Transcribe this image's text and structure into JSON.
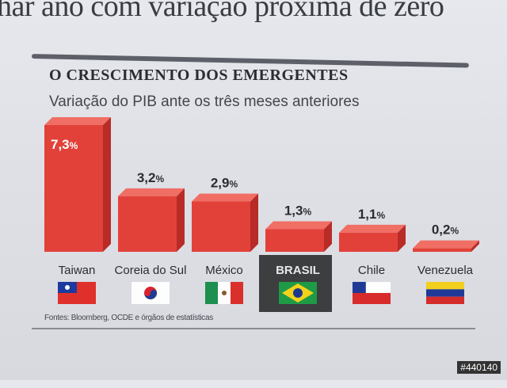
{
  "headline": "har ano com variação próxima de zero",
  "chart_data": {
    "type": "bar",
    "title": "O CRESCIMENTO DOS EMERGENTES",
    "subtitle": "Variação do PIB ante os três meses anteriores",
    "categories": [
      "Taiwan",
      "Coreia do Sul",
      "México",
      "BRASIL",
      "Chile",
      "Venezuela"
    ],
    "values": [
      7.3,
      3.2,
      2.9,
      1.3,
      1.1,
      0.2
    ],
    "value_labels": [
      "7,3",
      "3,2",
      "2,9",
      "1,3",
      "1,1",
      "0,2"
    ],
    "unit": "%",
    "highlight": "BRASIL",
    "ylim": [
      0,
      7.3
    ],
    "source": "Fontes: Bloomberg, OCDE e órgãos de estatísticas",
    "colors": {
      "bar": "#e2413a",
      "bar_top": "#f06e64",
      "bar_side": "#b82b27",
      "highlight_bg": "#3d3e40"
    }
  },
  "stamp": "#440140"
}
